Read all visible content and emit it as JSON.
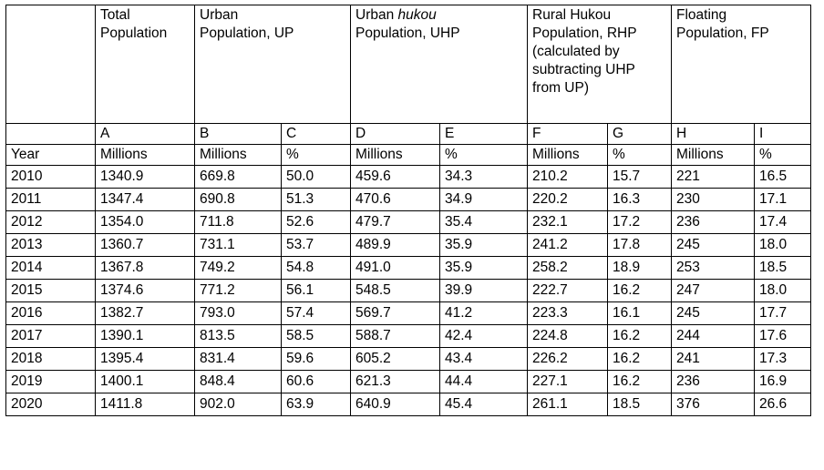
{
  "headers": {
    "total": [
      "Total",
      "Population"
    ],
    "urban": [
      "Urban",
      "Population, UP"
    ],
    "urban_hukou": {
      "pre": "Urban ",
      "italic": "hukou",
      "line2": "Population, UHP"
    },
    "rural_hukou": [
      "Rural Hukou",
      "Population, RHP",
      "(calculated by",
      "subtracting UHP",
      "from UP)"
    ],
    "floating": [
      "Floating",
      "Population, FP"
    ]
  },
  "letters": [
    "A",
    "B",
    "C",
    "D",
    "E",
    "F",
    "G",
    "H",
    "I"
  ],
  "units": {
    "year_label": "Year",
    "values": [
      "Millions",
      "Millions",
      "%",
      "Millions",
      "%",
      "Millions",
      "%",
      "Millions",
      "%"
    ]
  },
  "rows": [
    [
      "2010",
      "1340.9",
      "669.8",
      "50.0",
      "459.6",
      "34.3",
      "210.2",
      "15.7",
      "221",
      "16.5"
    ],
    [
      "2011",
      "1347.4",
      "690.8",
      "51.3",
      "470.6",
      "34.9",
      "220.2",
      "16.3",
      "230",
      "17.1"
    ],
    [
      "2012",
      "1354.0",
      "711.8",
      "52.6",
      "479.7",
      "35.4",
      "232.1",
      "17.2",
      "236",
      "17.4"
    ],
    [
      "2013",
      "1360.7",
      "731.1",
      "53.7",
      "489.9",
      "35.9",
      "241.2",
      "17.8",
      "245",
      "18.0"
    ],
    [
      "2014",
      "1367.8",
      "749.2",
      "54.8",
      "491.0",
      "35.9",
      "258.2",
      "18.9",
      "253",
      "18.5"
    ],
    [
      "2015",
      "1374.6",
      "771.2",
      "56.1",
      "548.5",
      "39.9",
      "222.7",
      "16.2",
      "247",
      "18.0"
    ],
    [
      "2016",
      "1382.7",
      "793.0",
      "57.4",
      "569.7",
      "41.2",
      "223.3",
      "16.1",
      "245",
      "17.7"
    ],
    [
      "2017",
      "1390.1",
      "813.5",
      "58.5",
      "588.7",
      "42.4",
      "224.8",
      "16.2",
      "244",
      "17.6"
    ],
    [
      "2018",
      "1395.4",
      "831.4",
      "59.6",
      "605.2",
      "43.4",
      "226.2",
      "16.2",
      "241",
      "17.3"
    ],
    [
      "2019",
      "1400.1",
      "848.4",
      "60.6",
      "621.3",
      "44.4",
      "227.1",
      "16.2",
      "236",
      "16.9"
    ],
    [
      "2020",
      "1411.8",
      "902.0",
      "63.9",
      "640.9",
      "45.4",
      "261.1",
      "18.5",
      "376",
      "26.6"
    ]
  ]
}
